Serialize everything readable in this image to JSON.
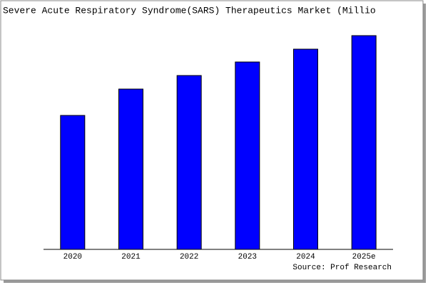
{
  "chart_data": {
    "type": "bar",
    "title": "Severe Acute Respiratory Syndrome(SARS) Therapeutics Market (Millio",
    "categories": [
      "2020",
      "2021",
      "2022",
      "2023",
      "2024",
      "2025e"
    ],
    "values": [
      188,
      225,
      244,
      263,
      281,
      300
    ],
    "color": "#0000ff",
    "ylim": [
      0,
      300
    ],
    "source": "Source: Prof Research"
  }
}
